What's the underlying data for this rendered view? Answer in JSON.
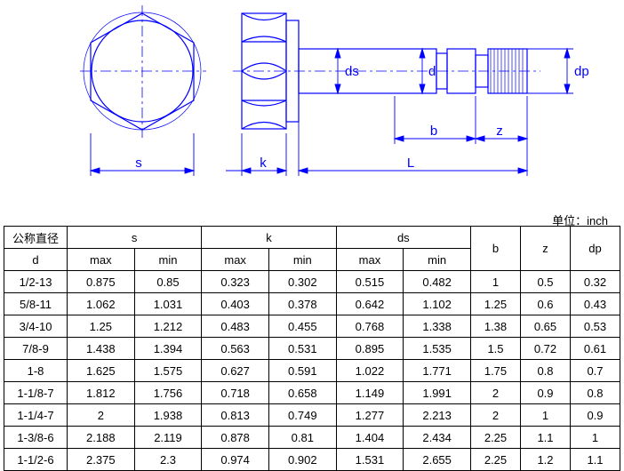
{
  "unit_label": "单位：inch",
  "diagram": {
    "stroke": "#0000ff",
    "stroke_width": 1.2,
    "labels": {
      "s": "s",
      "k": "k",
      "L": "L",
      "b": "b",
      "z": "z",
      "ds": "ds",
      "d": "d",
      "dp": "dp"
    }
  },
  "table": {
    "header": {
      "d_label1": "公称直径",
      "d_label2": "d",
      "s": "s",
      "k": "k",
      "ds": "ds",
      "b": "b",
      "z": "z",
      "dp": "dp",
      "max": "max",
      "min": "min"
    },
    "rows": [
      {
        "d": "1/2-13",
        "smax": "0.875",
        "smin": "0.85",
        "kmax": "0.323",
        "kmin": "0.302",
        "dsmax": "0.515",
        "dsmin": "0.482",
        "b": "1",
        "z": "0.5",
        "dp": "0.32"
      },
      {
        "d": "5/8-11",
        "smax": "1.062",
        "smin": "1.031",
        "kmax": "0.403",
        "kmin": "0.378",
        "dsmax": "0.642",
        "dsmin": "1.102",
        "b": "1.25",
        "z": "0.6",
        "dp": "0.43"
      },
      {
        "d": "3/4-10",
        "smax": "1.25",
        "smin": "1.212",
        "kmax": "0.483",
        "kmin": "0.455",
        "dsmax": "0.768",
        "dsmin": "1.338",
        "b": "1.38",
        "z": "0.65",
        "dp": "0.53"
      },
      {
        "d": "7/8-9",
        "smax": "1.438",
        "smin": "1.394",
        "kmax": "0.563",
        "kmin": "0.531",
        "dsmax": "0.895",
        "dsmin": "1.535",
        "b": "1.5",
        "z": "0.72",
        "dp": "0.61"
      },
      {
        "d": "1-8",
        "smax": "1.625",
        "smin": "1.575",
        "kmax": "0.627",
        "kmin": "0.591",
        "dsmax": "1.022",
        "dsmin": "1.771",
        "b": "1.75",
        "z": "0.8",
        "dp": "0.7"
      },
      {
        "d": "1-1/8-7",
        "smax": "1.812",
        "smin": "1.756",
        "kmax": "0.718",
        "kmin": "0.658",
        "dsmax": "1.149",
        "dsmin": "1.991",
        "b": "2",
        "z": "0.9",
        "dp": "0.8"
      },
      {
        "d": "1-1/4-7",
        "smax": "2",
        "smin": "1.938",
        "kmax": "0.813",
        "kmin": "0.749",
        "dsmax": "1.277",
        "dsmin": "2.213",
        "b": "2",
        "z": "1",
        "dp": "0.9"
      },
      {
        "d": "1-3/8-6",
        "smax": "2.188",
        "smin": "2.119",
        "kmax": "0.878",
        "kmin": "0.81",
        "dsmax": "1.404",
        "dsmin": "2.434",
        "b": "2.25",
        "z": "1.1",
        "dp": "1"
      },
      {
        "d": "1-1/2-6",
        "smax": "2.375",
        "smin": "2.3",
        "kmax": "0.974",
        "kmin": "0.902",
        "dsmax": "1.531",
        "dsmin": "2.655",
        "b": "2.25",
        "z": "1.2",
        "dp": "1.1"
      }
    ]
  }
}
